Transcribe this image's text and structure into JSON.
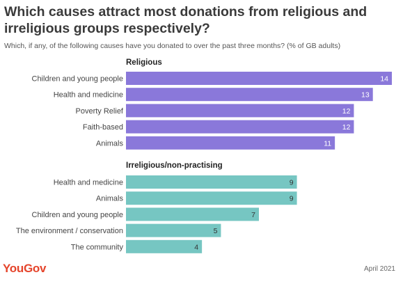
{
  "title": "Which causes attract most donations from religious and irreligious groups respectively?",
  "subtitle": "Which, if any, of the following causes have you donated to over the past three months? (% of GB adults)",
  "brand": "YouGov",
  "date": "April 2021",
  "colors": {
    "religious": "#8a78da",
    "irreligious": "#76c6c2",
    "brand": "#e5442b"
  },
  "chart_data": [
    {
      "type": "bar",
      "orientation": "horizontal",
      "title": "Religious",
      "color": "#8a78da",
      "categories": [
        "Children and young people",
        "Health and medicine",
        "Poverty Relief",
        "Faith-based",
        "Animals"
      ],
      "values": [
        14,
        13,
        12,
        12,
        11
      ],
      "xlim": [
        0,
        14
      ]
    },
    {
      "type": "bar",
      "orientation": "horizontal",
      "title": "Irreligious/non-practising",
      "color": "#76c6c2",
      "categories": [
        "Health and medicine",
        "Animals",
        "Children and young people",
        "The environment / conservation",
        "The community"
      ],
      "values": [
        9,
        9,
        7,
        5,
        4
      ],
      "xlim": [
        0,
        14
      ]
    }
  ]
}
